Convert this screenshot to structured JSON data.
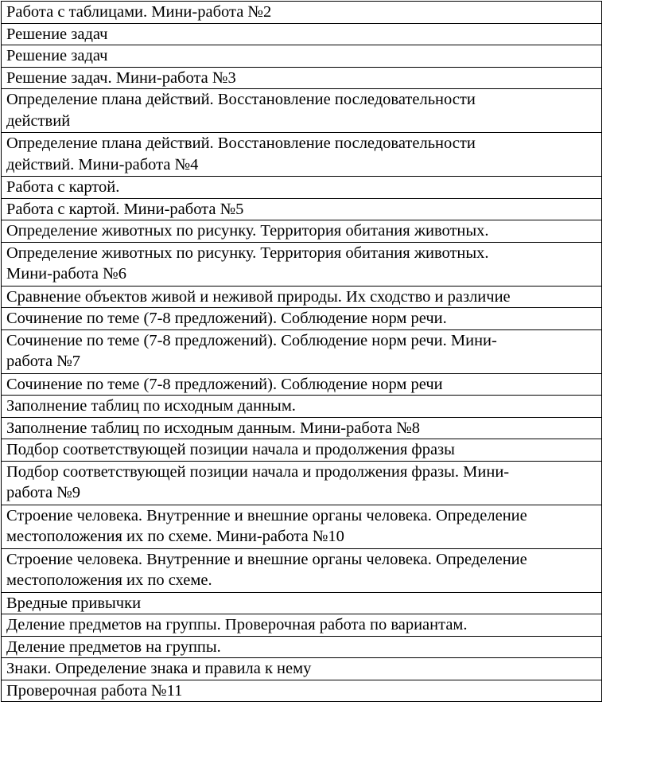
{
  "rows": [
    "Работа с таблицами. Мини-работа №2",
    "Решение задач",
    "Решение задач",
    "Решение задач. Мини-работа №3",
    "Определение плана действий. Восстановление последовательности\nдействий",
    "Определение плана действий. Восстановление последовательности\nдействий. Мини-работа №4",
    "Работа с картой.",
    "Работа с картой. Мини-работа №5",
    "Определение животных по рисунку. Территория обитания животных.",
    "Определение животных по рисунку. Территория обитания животных.\nМини-работа №6",
    "Сравнение объектов живой и неживой природы. Их сходство и различие",
    "Сочинение по теме (7-8 предложений). Соблюдение норм речи.",
    "Сочинение по теме (7-8 предложений). Соблюдение норм речи. Мини-\nработа №7",
    "Сочинение по теме (7-8 предложений). Соблюдение норм речи",
    "Заполнение таблиц по исходным данным.",
    "Заполнение таблиц по исходным данным. Мини-работа №8",
    "Подбор соответствующей позиции начала и продолжения фразы",
    "Подбор соответствующей позиции начала и продолжения фразы. Мини-\nработа №9",
    "Строение человека. Внутренние и внешние органы человека. Определение\nместоположения их по схеме. Мини-работа №10",
    "Строение человека. Внутренние и внешние органы человека. Определение\nместоположения их по схеме.",
    "Вредные привычки",
    "Деление предметов на группы. Проверочная работа по вариантам.",
    "Деление предметов на группы.",
    "Знаки. Определение знака и правила к нему",
    "Проверочная работа №11"
  ]
}
